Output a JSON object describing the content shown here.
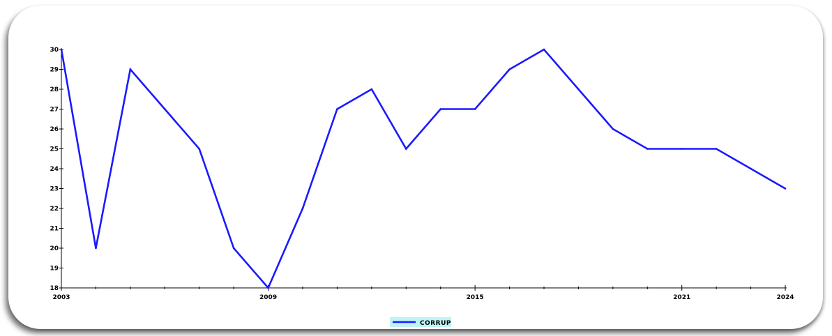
{
  "chart_data": {
    "type": "line",
    "title": "",
    "xlabel": "",
    "ylabel": "",
    "x": [
      2003,
      2004,
      2005,
      2006,
      2007,
      2008,
      2009,
      2010,
      2011,
      2012,
      2013,
      2014,
      2015,
      2016,
      2017,
      2018,
      2019,
      2020,
      2021,
      2022,
      2023,
      2024
    ],
    "series": [
      {
        "name": "CORRUP",
        "color": "#1a1aff",
        "values": [
          30,
          20,
          29,
          27,
          25,
          20,
          18,
          22,
          27,
          28,
          25,
          27,
          27,
          29,
          30,
          28,
          26,
          25,
          25,
          25,
          24,
          23
        ]
      }
    ],
    "xlim": [
      2003,
      2024
    ],
    "ylim": [
      18,
      30
    ],
    "x_tick_labels": [
      "2003",
      "2009",
      "2015",
      "2021",
      "2024"
    ],
    "y_tick_labels": [
      "18",
      "19",
      "20",
      "21",
      "22",
      "23",
      "24",
      "25",
      "26",
      "27",
      "28",
      "29",
      "30"
    ],
    "grid": false,
    "legend_position": "bottom-center",
    "legend_highlight_color": "#bff3f6"
  }
}
